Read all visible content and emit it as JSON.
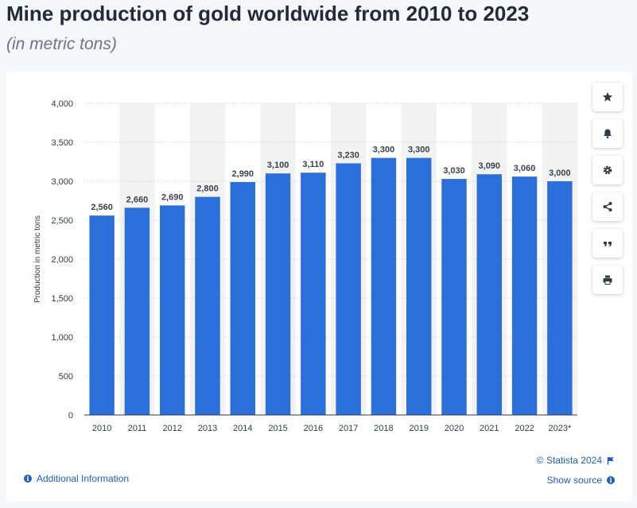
{
  "header": {
    "title": "Mine production of gold worldwide from 2010 to 2023",
    "subtitle": "(in metric tons)"
  },
  "colors": {
    "bar": "#2b6fdb",
    "band": "#f2f2f2",
    "link": "#1c5fc2"
  },
  "toolbar": {
    "icons": [
      "star-icon",
      "bell-icon",
      "gear-icon",
      "share-icon",
      "quote-icon",
      "print-icon"
    ]
  },
  "footer": {
    "additional_info": "Additional Information",
    "copyright": "© Statista 2024",
    "show_source": "Show source"
  },
  "chart_data": {
    "type": "bar",
    "ylabel": "Production in metric tons",
    "ylim": [
      0,
      4000
    ],
    "yticks": [
      "0",
      "500",
      "1,000",
      "1,500",
      "2,000",
      "2,500",
      "3,000",
      "3,500",
      "4,000"
    ],
    "categories": [
      "2010",
      "2011",
      "2012",
      "2013",
      "2014",
      "2015",
      "2016",
      "2017",
      "2018",
      "2019",
      "2020",
      "2021",
      "2022",
      "2023*"
    ],
    "values": [
      2560,
      2660,
      2690,
      2800,
      2990,
      3100,
      3110,
      3230,
      3300,
      3300,
      3030,
      3090,
      3060,
      3000
    ],
    "value_labels": [
      "2,560",
      "2,660",
      "2,690",
      "2,800",
      "2,990",
      "3,100",
      "3,110",
      "3,230",
      "3,300",
      "3,300",
      "3,030",
      "3,090",
      "3,060",
      "3,000"
    ],
    "grid": true
  }
}
